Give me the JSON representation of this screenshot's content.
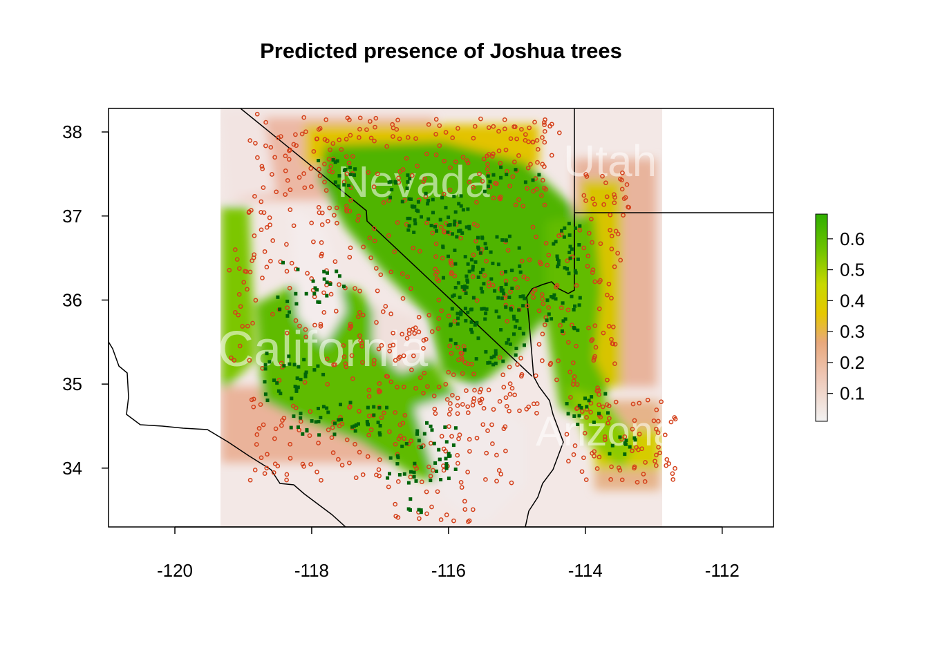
{
  "title": "Predicted presence of Joshua trees",
  "map": {
    "extent": {
      "lon": [
        -120.97,
        -111.25
      ],
      "lat": [
        33.3,
        38.28
      ]
    },
    "x_ticks": [
      -120,
      -118,
      -116,
      -114,
      -112
    ],
    "y_ticks": [
      34,
      35,
      36,
      37,
      38
    ],
    "x_tick_labels": [
      "-120",
      "-118",
      "-116",
      "-114",
      "-112"
    ],
    "y_tick_labels": [
      "34",
      "35",
      "36",
      "37",
      "38"
    ],
    "state_labels": [
      "Nevada",
      "Utah",
      "California",
      "Arizona"
    ],
    "layers": [
      "predicted presence probability raster",
      "state boundaries",
      "absence points (red circles)",
      "presence points (dark green squares)"
    ],
    "colors": {
      "low": "#f2f2f2",
      "mid_low": "#e8a87c",
      "mid": "#e6c800",
      "high": "#2fae00",
      "presence_marker": "#00640a",
      "absence_marker": "#d4401a"
    }
  },
  "legend": {
    "title": "",
    "range": [
      0.01,
      0.68
    ],
    "tick_values": [
      0.1,
      0.2,
      0.3,
      0.4,
      0.5,
      0.6
    ],
    "tick_labels": [
      "0.1",
      "0.2",
      "0.3",
      "0.4",
      "0.5",
      "0.6"
    ]
  }
}
